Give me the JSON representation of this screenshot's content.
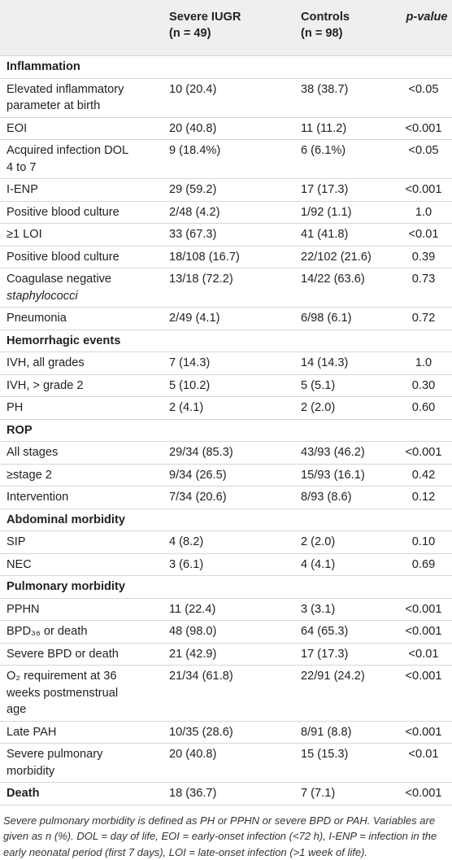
{
  "table": {
    "header": [
      "",
      [
        "Severe IUGR",
        "(n = 49)"
      ],
      [
        "Controls",
        "(n = 98)"
      ],
      "p-value"
    ],
    "rows": [
      {
        "kind": "section",
        "label": [
          "Inflammation"
        ]
      },
      {
        "kind": "row",
        "label": [
          "Elevated inflammatory",
          "parameter at birth"
        ],
        "values": [
          "10 (20.4)",
          "38 (38.7)",
          "<0.05"
        ]
      },
      {
        "kind": "row",
        "label": [
          "EOI"
        ],
        "values": [
          "20 (40.8)",
          "11 (11.2)",
          "<0.001"
        ]
      },
      {
        "kind": "row",
        "label": [
          "Acquired infection DOL",
          "4 to 7"
        ],
        "values": [
          "9 (18.4%)",
          "6 (6.1%)",
          "<0.05"
        ]
      },
      {
        "kind": "row",
        "label": [
          "I-ENP"
        ],
        "values": [
          "29 (59.2)",
          "17 (17.3)",
          "<0.001"
        ]
      },
      {
        "kind": "row",
        "label": [
          "Positive blood culture"
        ],
        "values": [
          "2/48 (4.2)",
          "1/92 (1.1)",
          "1.0"
        ]
      },
      {
        "kind": "row",
        "label": [
          "≥1 LOI"
        ],
        "values": [
          "33 (67.3)",
          "41 (41.8)",
          "<0.01"
        ]
      },
      {
        "kind": "row",
        "label": [
          "Positive blood culture"
        ],
        "values": [
          "18/108 (16.7)",
          "22/102 (21.6)",
          "0.39"
        ]
      },
      {
        "kind": "row",
        "label": [
          "Coagulase negative"
        ],
        "label_em": "staphylococci",
        "values": [
          "13/18 (72.2)",
          "14/22 (63.6)",
          "0.73"
        ]
      },
      {
        "kind": "row",
        "label": [
          "Pneumonia"
        ],
        "values": [
          "2/49 (4.1)",
          "6/98 (6.1)",
          "0.72"
        ]
      },
      {
        "kind": "section",
        "label": [
          "Hemorrhagic events"
        ]
      },
      {
        "kind": "row",
        "label": [
          "IVH, all grades"
        ],
        "values": [
          "7 (14.3)",
          "14 (14.3)",
          "1.0"
        ]
      },
      {
        "kind": "row",
        "label": [
          "IVH, > grade 2"
        ],
        "values": [
          "5 (10.2)",
          "5 (5.1)",
          "0.30"
        ]
      },
      {
        "kind": "row",
        "label": [
          "PH"
        ],
        "values": [
          "2 (4.1)",
          "2 (2.0)",
          "0.60"
        ]
      },
      {
        "kind": "section",
        "label": [
          "ROP"
        ]
      },
      {
        "kind": "row",
        "label": [
          "All stages"
        ],
        "values": [
          "29/34 (85.3)",
          "43/93 (46.2)",
          "<0.001"
        ]
      },
      {
        "kind": "row",
        "label": [
          "≥stage 2"
        ],
        "values": [
          "9/34 (26.5)",
          "15/93 (16.1)",
          "0.42"
        ]
      },
      {
        "kind": "row",
        "label": [
          "Intervention"
        ],
        "values": [
          "7/34 (20.6)",
          "8/93 (8.6)",
          "0.12"
        ]
      },
      {
        "kind": "section",
        "label": [
          "Abdominal morbidity"
        ]
      },
      {
        "kind": "row",
        "label": [
          "SIP"
        ],
        "values": [
          "4 (8.2)",
          "2 (2.0)",
          "0.10"
        ]
      },
      {
        "kind": "row",
        "label": [
          "NEC"
        ],
        "values": [
          "3 (6.1)",
          "4 (4.1)",
          "0.69"
        ]
      },
      {
        "kind": "section",
        "label": [
          "Pulmonary morbidity"
        ]
      },
      {
        "kind": "row",
        "label": [
          "PPHN"
        ],
        "values": [
          "11 (22.4)",
          "3 (3.1)",
          "<0.001"
        ]
      },
      {
        "kind": "row",
        "label": [
          "BPD₃₆ or death"
        ],
        "values": [
          "48 (98.0)",
          "64 (65.3)",
          "<0.001"
        ]
      },
      {
        "kind": "row",
        "label": [
          "Severe BPD or death"
        ],
        "values": [
          "21 (42.9)",
          "17 (17.3)",
          "<0.01"
        ]
      },
      {
        "kind": "row",
        "label": [
          "O₂ requirement at 36",
          "weeks postmenstrual",
          "age"
        ],
        "values": [
          "21/34 (61.8)",
          "22/91 (24.2)",
          "<0.001"
        ]
      },
      {
        "kind": "row",
        "label": [
          "Late PAH"
        ],
        "values": [
          "10/35 (28.6)",
          "8/91 (8.8)",
          "<0.001"
        ]
      },
      {
        "kind": "row",
        "label": [
          "Severe pulmonary",
          "morbidity"
        ],
        "values": [
          "20 (40.8)",
          "15 (15.3)",
          "<0.01"
        ]
      },
      {
        "kind": "bold",
        "label": [
          "Death"
        ],
        "values": [
          "18 (36.7)",
          "7 (7.1)",
          "<0.001"
        ]
      }
    ],
    "footnote": "Severe pulmonary morbidity is defined as PH or PPHN or severe BPD or PAH. Variables are given as n (%). DOL = day of life, EOI = early-onset infection (<72 h), I-ENP = infection in the early neonatal period (first 7 days), LOI = late-onset infection (>1 week of life)."
  }
}
